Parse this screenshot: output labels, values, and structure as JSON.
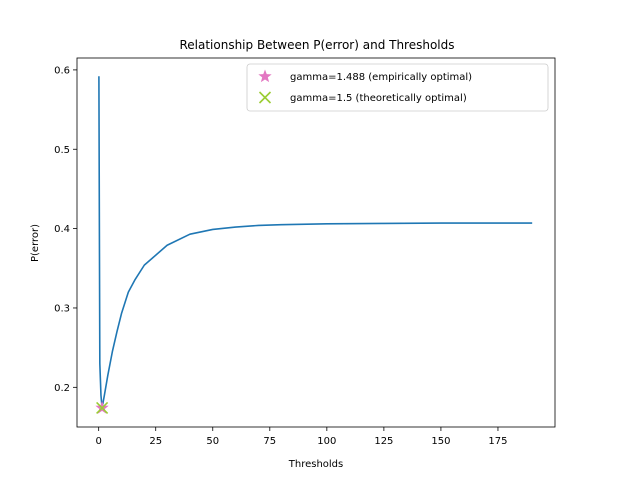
{
  "chart_data": {
    "type": "line",
    "title": "Relationship Between P(error) and Thresholds",
    "xlabel": "Thresholds",
    "ylabel": "P(error)",
    "xlim": [
      -9.5,
      200
    ],
    "ylim": [
      0.15,
      0.615
    ],
    "xticks": [
      0,
      25,
      50,
      75,
      100,
      125,
      150,
      175
    ],
    "yticks": [
      0.2,
      0.3,
      0.4,
      0.5,
      0.6
    ],
    "grid": false,
    "legend_position": "top-right",
    "series": [
      {
        "color": "#1f77b4",
        "x": [
          0.1,
          0.5,
          1.0,
          1.488,
          2.5,
          4,
          6,
          8,
          10,
          13,
          16,
          20,
          30,
          40,
          50,
          60,
          70,
          80,
          100,
          125,
          150,
          175,
          190
        ],
        "y": [
          0.592,
          0.23,
          0.19,
          0.174,
          0.19,
          0.215,
          0.245,
          0.27,
          0.293,
          0.32,
          0.336,
          0.354,
          0.379,
          0.393,
          0.399,
          0.402,
          0.404,
          0.405,
          0.406,
          0.4065,
          0.407,
          0.407,
          0.407
        ]
      }
    ],
    "markers": [
      {
        "label": "gamma=1.488 (empirically optimal)",
        "shape": "star",
        "color": "#e377c2",
        "x": 1.488,
        "y": 0.174
      },
      {
        "label": "gamma=1.5 (theoretically optimal)",
        "shape": "x",
        "color": "#9acd32",
        "x": 1.5,
        "y": 0.174
      }
    ]
  }
}
